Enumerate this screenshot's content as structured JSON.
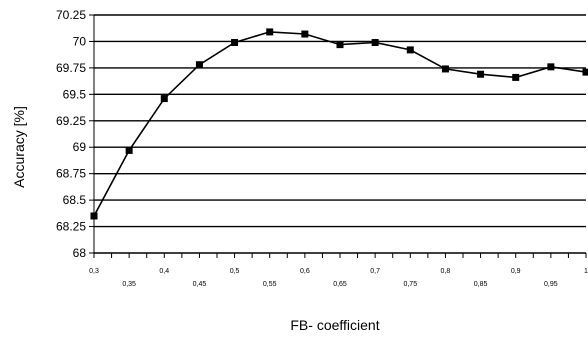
{
  "chart_data": {
    "type": "line",
    "title": "",
    "xlabel": "FB- coefficient",
    "ylabel": "Accuracy [%]",
    "xlim": [
      0.3,
      1.0
    ],
    "ylim": [
      68,
      70.25
    ],
    "grid": "horizontal",
    "legend": "none",
    "y_ticks": [
      "68",
      "68.25",
      "68.5",
      "68.75",
      "69",
      "69.25",
      "69.5",
      "69.75",
      "70",
      "70.25"
    ],
    "x_ticks": [
      "0,3",
      "0,35",
      "0,4",
      "0,45",
      "0,5",
      "0,55",
      "0,6",
      "0,65",
      "0,7",
      "0,75",
      "0,8",
      "0,85",
      "0,9",
      "0,95",
      "1"
    ],
    "series": [
      {
        "x": [
          0.3,
          0.35,
          0.4,
          0.45,
          0.5,
          0.55,
          0.6,
          0.65,
          0.7,
          0.75,
          0.8,
          0.85,
          0.9,
          0.95,
          1.0
        ],
        "values": [
          68.35,
          68.97,
          69.46,
          69.78,
          69.99,
          70.09,
          70.07,
          69.97,
          69.99,
          69.92,
          69.74,
          69.69,
          69.66,
          69.76,
          69.71
        ]
      }
    ],
    "colors": {
      "line": "#000000",
      "marker": "#000000",
      "grid": "#000000"
    }
  }
}
